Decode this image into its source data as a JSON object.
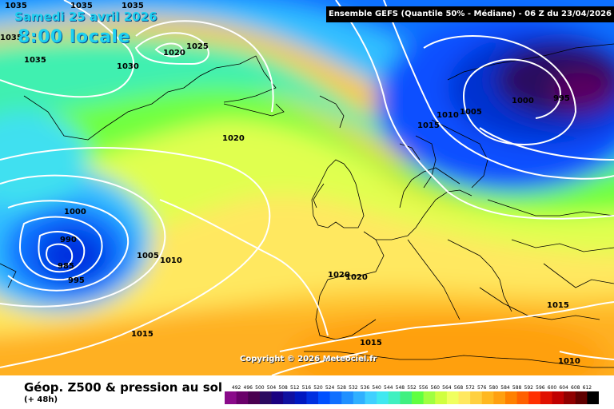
{
  "header": {
    "date": "Samedi 25 avril 2026",
    "time": "8:00 locale",
    "run_info": "Ensemble GEFS  (Quantile 50% - Médiane) - 06 Z du 23/04/2026"
  },
  "copyright": "Copyright © 2026 Meteociel.fr",
  "footer": {
    "title": "Géop. Z500 & pression au sol",
    "subtitle": "(+ 48h)"
  },
  "scale": {
    "values": [
      "492",
      "496",
      "500",
      "504",
      "508",
      "512",
      "516",
      "520",
      "524",
      "528",
      "532",
      "536",
      "540",
      "544",
      "548",
      "552",
      "556",
      "560",
      "564",
      "568",
      "572",
      "576",
      "580",
      "584",
      "588",
      "592",
      "596",
      "600",
      "604",
      "608",
      "612"
    ],
    "colors": [
      "#8a0a8a",
      "#6a006a",
      "#4a0050",
      "#2a0a60",
      "#1a0080",
      "#1010a0",
      "#0018c0",
      "#0030e0",
      "#0050ff",
      "#1070ff",
      "#2090ff",
      "#30b0ff",
      "#40d0ff",
      "#40e8f0",
      "#40f0c0",
      "#40f080",
      "#60ff40",
      "#a0ff40",
      "#d0ff40",
      "#f0ff60",
      "#ffe860",
      "#ffd040",
      "#ffb820",
      "#ffa010",
      "#ff8000",
      "#ff6000",
      "#ff3000",
      "#e01000",
      "#c00000",
      "#900000",
      "#600000",
      "#000000"
    ]
  },
  "pressure_labels": [
    {
      "text": "1035"
    },
    {
      "text": "1035"
    },
    {
      "text": "1035"
    },
    {
      "text": "1035"
    },
    {
      "text": "1035"
    },
    {
      "text": "1030"
    },
    {
      "text": "1020"
    },
    {
      "text": "1025"
    },
    {
      "text": "1020"
    },
    {
      "text": "1000"
    },
    {
      "text": "990"
    },
    {
      "text": "985"
    },
    {
      "text": "995"
    },
    {
      "text": "1005"
    },
    {
      "text": "1010"
    },
    {
      "text": "1015"
    },
    {
      "text": "1015"
    },
    {
      "text": "1020"
    },
    {
      "text": "1020"
    },
    {
      "text": "1015"
    },
    {
      "text": "1010"
    },
    {
      "text": "1005"
    },
    {
      "text": "1000"
    },
    {
      "text": "995"
    },
    {
      "text": "1015"
    },
    {
      "text": "1010"
    }
  ]
}
